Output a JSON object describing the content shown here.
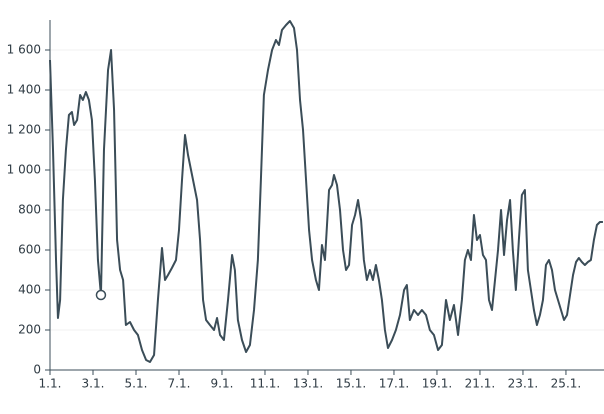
{
  "chart_data": {
    "type": "line",
    "color": "#3b4d58",
    "grid": true,
    "xlim": [
      1,
      26.77
    ],
    "ylim": [
      0,
      1750
    ],
    "xticks": [
      {
        "value": 1,
        "label": "1.1."
      },
      {
        "value": 3,
        "label": "3.1."
      },
      {
        "value": 5,
        "label": "5.1."
      },
      {
        "value": 7,
        "label": "7.1."
      },
      {
        "value": 9,
        "label": "9.1."
      },
      {
        "value": 11,
        "label": "11.1."
      },
      {
        "value": 13,
        "label": "13.1."
      },
      {
        "value": 15,
        "label": "15.1."
      },
      {
        "value": 17,
        "label": "17.1."
      },
      {
        "value": 19,
        "label": "19.1."
      },
      {
        "value": 21,
        "label": "21.1."
      },
      {
        "value": 23,
        "label": "23.1."
      },
      {
        "value": 25,
        "label": "25.1."
      }
    ],
    "yticks": [
      0,
      200,
      400,
      600,
      800,
      {
        "value": 1000,
        "label": "1 000"
      },
      {
        "value": 1200,
        "label": "1 200"
      },
      {
        "value": 1400,
        "label": "1 400"
      },
      {
        "value": 1600,
        "label": "1 600"
      }
    ],
    "x": [
      1.0,
      1.14,
      1.28,
      1.37,
      1.47,
      1.6,
      1.74,
      1.88,
      2.02,
      2.12,
      2.26,
      2.4,
      2.53,
      2.67,
      2.81,
      2.95,
      3.09,
      3.23,
      3.37,
      3.51,
      3.7,
      3.84,
      3.98,
      4.12,
      4.26,
      4.4,
      4.53,
      4.72,
      4.91,
      5.09,
      5.28,
      5.47,
      5.65,
      5.84,
      6.02,
      6.21,
      6.35,
      6.49,
      6.67,
      6.86,
      7.0,
      7.14,
      7.28,
      7.42,
      7.56,
      7.7,
      7.84,
      7.98,
      8.12,
      8.26,
      8.44,
      8.63,
      8.77,
      8.91,
      9.09,
      9.28,
      9.47,
      9.6,
      9.74,
      9.93,
      10.12,
      10.3,
      10.49,
      10.67,
      10.81,
      10.95,
      11.14,
      11.33,
      11.51,
      11.65,
      11.79,
      11.98,
      12.16,
      12.35,
      12.49,
      12.63,
      12.77,
      12.91,
      13.05,
      13.19,
      13.37,
      13.51,
      13.65,
      13.79,
      13.98,
      14.12,
      14.21,
      14.35,
      14.49,
      14.63,
      14.77,
      14.91,
      15.05,
      15.19,
      15.33,
      15.47,
      15.6,
      15.74,
      15.88,
      16.02,
      16.16,
      16.3,
      16.44,
      16.58,
      16.72,
      16.91,
      17.09,
      17.28,
      17.47,
      17.6,
      17.74,
      17.93,
      18.12,
      18.3,
      18.49,
      18.67,
      18.86,
      19.05,
      19.23,
      19.42,
      19.6,
      19.79,
      19.98,
      20.16,
      20.3,
      20.44,
      20.58,
      20.72,
      20.86,
      21.0,
      21.14,
      21.28,
      21.42,
      21.56,
      21.7,
      21.84,
      21.98,
      22.12,
      22.26,
      22.4,
      22.53,
      22.67,
      22.81,
      22.95,
      23.09,
      23.23,
      23.37,
      23.51,
      23.65,
      23.79,
      23.93,
      24.07,
      24.21,
      24.35,
      24.49,
      24.63,
      24.77,
      24.91,
      25.05,
      25.19,
      25.33,
      25.47,
      25.6,
      25.74,
      25.88,
      26.02,
      26.16,
      26.3,
      26.44,
      26.58,
      26.72
    ],
    "values": [
      1550,
      1100,
      550,
      260,
      350,
      850,
      1100,
      1275,
      1290,
      1225,
      1250,
      1375,
      1350,
      1390,
      1350,
      1250,
      950,
      550,
      375,
      1100,
      1500,
      1600,
      1300,
      650,
      500,
      450,
      225,
      240,
      200,
      175,
      100,
      50,
      40,
      75,
      350,
      610,
      450,
      475,
      510,
      550,
      700,
      950,
      1175,
      1075,
      1000,
      925,
      850,
      650,
      350,
      250,
      225,
      200,
      260,
      175,
      150,
      350,
      575,
      500,
      250,
      150,
      90,
      125,
      300,
      550,
      950,
      1375,
      1500,
      1600,
      1650,
      1625,
      1700,
      1725,
      1745,
      1710,
      1600,
      1350,
      1200,
      950,
      700,
      550,
      450,
      400,
      625,
      550,
      900,
      925,
      975,
      925,
      800,
      600,
      500,
      525,
      725,
      775,
      850,
      750,
      550,
      450,
      500,
      450,
      525,
      450,
      350,
      200,
      110,
      150,
      200,
      275,
      400,
      425,
      250,
      300,
      275,
      300,
      275,
      200,
      175,
      100,
      125,
      350,
      250,
      325,
      175,
      350,
      550,
      600,
      550,
      775,
      650,
      675,
      575,
      550,
      350,
      300,
      450,
      600,
      800,
      575,
      750,
      850,
      600,
      400,
      650,
      875,
      900,
      500,
      400,
      300,
      225,
      275,
      350,
      525,
      550,
      500,
      400,
      350,
      300,
      250,
      275,
      375,
      475,
      540,
      560,
      540,
      525,
      540,
      550,
      650,
      725,
      740,
      740
    ],
    "marker": {
      "x": 3.37,
      "y": 375
    }
  }
}
